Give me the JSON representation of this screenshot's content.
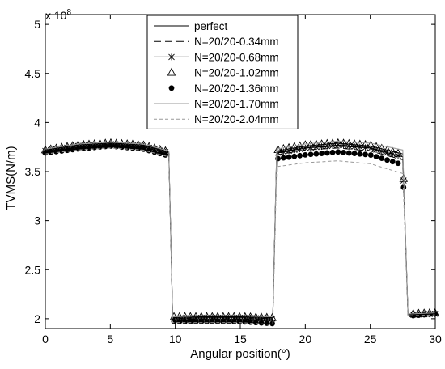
{
  "chart_data": {
    "type": "line",
    "xlabel": "Angular position(°)",
    "ylabel": "TVMS(N/m)",
    "y_multiplier_label": "x 10",
    "y_multiplier_exponent": "8",
    "xlim": [
      0,
      30
    ],
    "ylim": [
      1.9,
      5.1
    ],
    "xticks": [
      0,
      5,
      10,
      15,
      20,
      25,
      30
    ],
    "yticks": [
      2,
      2.5,
      3,
      3.5,
      4,
      4.5,
      5
    ],
    "xtick_labels": [
      "0",
      "5",
      "10",
      "15",
      "20",
      "25",
      "30"
    ],
    "ytick_labels": [
      "2",
      "2.5",
      "3",
      "3.5",
      "4",
      "4.5",
      "5"
    ],
    "grid": false,
    "legend_position": "top-center",
    "colors": {
      "line": "#000000",
      "light_line": "#999999",
      "axes": "#000000",
      "background": "#ffffff"
    },
    "series": [
      {
        "name": "perfect",
        "style": "solid",
        "x": [
          0,
          2.5,
          5,
          7.5,
          9.5,
          9.8,
          12,
          15,
          17.5,
          17.8,
          20,
          22.5,
          25,
          27.5,
          27.9,
          28.2,
          30
        ],
        "y": [
          3.72,
          3.77,
          3.79,
          3.77,
          3.7,
          2.01,
          2.02,
          2.02,
          2.01,
          3.71,
          3.76,
          3.79,
          3.76,
          3.68,
          2.05,
          2.05,
          2.06
        ]
      },
      {
        "name": "N=20/20-0.34mm",
        "style": "longdash",
        "x": [
          0,
          2.5,
          5,
          7.5,
          9.5,
          9.8,
          12,
          15,
          17.5,
          17.8,
          20,
          22.5,
          25,
          27.5,
          27.9,
          28.2,
          30
        ],
        "y": [
          3.7,
          3.75,
          3.77,
          3.75,
          3.68,
          1.99,
          2.0,
          2.0,
          1.99,
          3.67,
          3.72,
          3.74,
          3.71,
          3.62,
          2.04,
          2.04,
          2.05
        ]
      },
      {
        "name": "N=20/20-0.68mm",
        "style": "solid-star",
        "x": [
          0,
          2.5,
          5,
          7.5,
          9.5,
          9.8,
          12,
          15,
          17.5,
          17.8,
          20,
          22.5,
          25,
          27.5,
          27.9,
          28.2,
          30
        ],
        "y": [
          3.71,
          3.76,
          3.78,
          3.76,
          3.69,
          2.0,
          2.01,
          2.01,
          2.0,
          3.69,
          3.74,
          3.77,
          3.74,
          3.65,
          2.04,
          2.04,
          2.05
        ]
      },
      {
        "name": "N=20/20-1.02mm",
        "style": "triangle",
        "x": [
          0,
          2.5,
          5,
          7.5,
          9.5,
          9.8,
          12,
          15,
          17.5,
          17.8,
          20,
          22.5,
          25,
          27.5,
          27.9,
          28.2,
          30
        ],
        "y": [
          3.72,
          3.77,
          3.79,
          3.77,
          3.7,
          2.02,
          2.02,
          2.02,
          2.01,
          3.72,
          3.77,
          3.79,
          3.77,
          3.67,
          2.05,
          2.05,
          2.06
        ]
      },
      {
        "name": "N=20/20-1.36mm",
        "style": "dot",
        "x": [
          0,
          2.5,
          5,
          7.5,
          9.5,
          9.8,
          12,
          15,
          17.5,
          17.8,
          20,
          22.5,
          25,
          27.5,
          27.9,
          28.2,
          30
        ],
        "y": [
          3.69,
          3.73,
          3.76,
          3.73,
          3.66,
          1.97,
          1.97,
          1.97,
          1.95,
          3.63,
          3.67,
          3.7,
          3.67,
          3.57,
          2.03,
          2.03,
          2.05
        ]
      },
      {
        "name": "N=20/20-1.70mm",
        "style": "solid-light",
        "x": [
          0,
          2.5,
          5,
          7.5,
          9.5,
          9.8,
          12,
          15,
          17.5,
          17.8,
          20,
          22.5,
          25,
          27.5,
          27.9,
          28.2,
          30
        ],
        "y": [
          3.73,
          3.78,
          3.8,
          3.78,
          3.71,
          2.02,
          2.03,
          2.03,
          2.02,
          3.73,
          3.78,
          3.81,
          3.79,
          3.72,
          2.05,
          2.05,
          2.06
        ]
      },
      {
        "name": "N=20/20-2.04mm",
        "style": "dash-light",
        "x": [
          0,
          2.5,
          5,
          7.5,
          9.5,
          9.8,
          12,
          15,
          17.5,
          17.8,
          20,
          22.5,
          25,
          27.5,
          27.9,
          28.2,
          30
        ],
        "y": [
          3.68,
          3.72,
          3.74,
          3.72,
          3.65,
          1.96,
          1.96,
          1.96,
          1.94,
          3.55,
          3.59,
          3.61,
          3.58,
          3.48,
          2.03,
          2.03,
          2.04
        ]
      }
    ]
  }
}
